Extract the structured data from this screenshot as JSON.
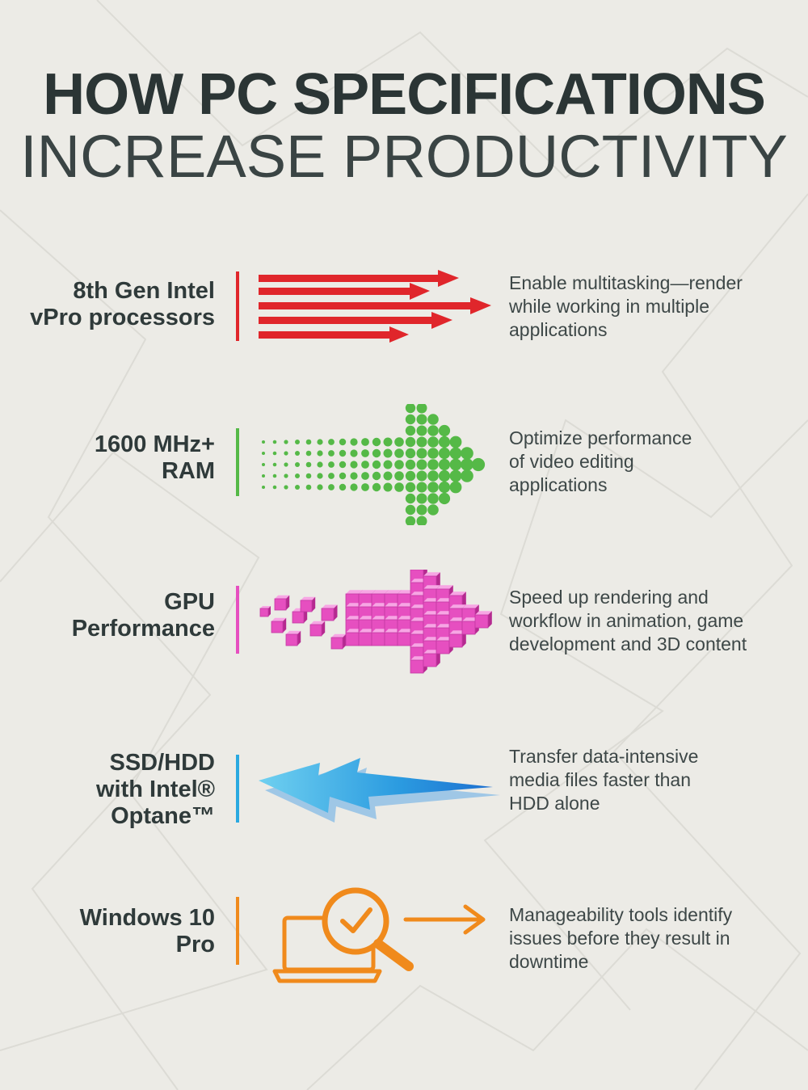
{
  "title": {
    "line1": "HOW PC SPECIFICATIONS",
    "line2": "INCREASE PRODUCTIVITY"
  },
  "rows": [
    {
      "label_lines": [
        "8th Gen Intel",
        "vPro processors"
      ],
      "desc_lines": [
        "Enable multitasking—render",
        "while working in multiple",
        "applications"
      ],
      "color": "#e0262b",
      "icon": "red-speed-arrows-icon"
    },
    {
      "label_lines": [
        "1600 MHz+",
        "RAM"
      ],
      "desc_lines": [
        "Optimize performance",
        "of video editing",
        "applications"
      ],
      "color": "#55b947",
      "icon": "green-dotted-arrow-icon"
    },
    {
      "label_lines": [
        "GPU",
        "Performance"
      ],
      "desc_lines": [
        "Speed up rendering and",
        "workflow in animation, game",
        "development and 3D content"
      ],
      "color": "#e64fc0",
      "icon": "pink-cube-arrow-icon"
    },
    {
      "label_lines": [
        "SSD/HDD",
        "with Intel®",
        "Optane™"
      ],
      "desc_lines": [
        "Transfer data-intensive",
        "media files faster than",
        "HDD alone"
      ],
      "color": "#2aa9e0",
      "icon": "blue-lightning-arrow-icon"
    },
    {
      "label_lines": [
        "Windows 10",
        "Pro"
      ],
      "desc_lines": [
        "Manageability tools identify",
        "issues before they result in",
        "downtime"
      ],
      "color": "#f08a1c",
      "icon": "laptop-magnifier-check-icon"
    }
  ]
}
